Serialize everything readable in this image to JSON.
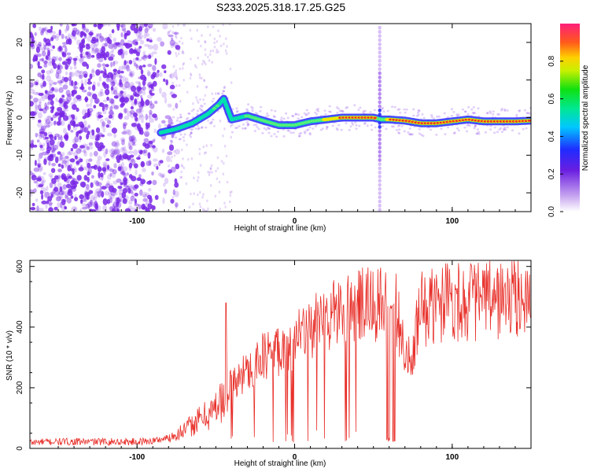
{
  "title": "S233.2025.318.17.25.G25",
  "colors": {
    "snr_line": "#e8302a",
    "ridge_core": "#e8302a",
    "ridge_mid": "#f2e600",
    "ridge_outer": "#00e0b0",
    "ridge_edge": "#2a2aff",
    "noise": "#7a28e6"
  },
  "chart_data": [
    {
      "type": "heatmap",
      "name": "spectrogram",
      "xlabel": "Height of straight line (km)",
      "ylabel": "Frequency (Hz)",
      "xlim": [
        -168,
        150
      ],
      "ylim": [
        -25,
        25
      ],
      "xticks": [
        -100,
        0,
        100
      ],
      "xtick_labels": [
        "-100",
        "0",
        "100"
      ],
      "yticks": [
        -20,
        -10,
        0,
        10,
        20
      ],
      "ytick_labels": [
        "-20",
        "-10",
        "0",
        "10",
        "20"
      ],
      "colorbar": {
        "label": "Normalized spectral amplitude",
        "range": [
          0,
          1
        ],
        "ticks": [
          0.0,
          0.2,
          0.4,
          0.6,
          0.8
        ],
        "tick_labels": [
          "0.0",
          "0.2",
          "0.4",
          "0.6",
          "0.8"
        ]
      },
      "noise_region_x": [
        -168,
        -80
      ],
      "ridge": {
        "x": [
          -85,
          -75,
          -65,
          -55,
          -48,
          -45,
          -40,
          -30,
          -20,
          -10,
          0,
          10,
          20,
          30,
          40,
          50,
          55,
          60,
          70,
          80,
          90,
          100,
          110,
          120,
          130,
          140,
          150
        ],
        "y": [
          -4,
          -3,
          -1.5,
          1,
          3.5,
          5,
          -0.5,
          0.5,
          -0.8,
          -2,
          -2,
          -1,
          -0.5,
          0,
          0,
          0,
          -0.5,
          -0.5,
          -0.8,
          -1.5,
          -1.5,
          -1,
          -0.5,
          -1,
          -1,
          -1,
          -0.8
        ],
        "amplitude": [
          0.25,
          0.3,
          0.35,
          0.4,
          0.45,
          0.35,
          0.35,
          0.45,
          0.5,
          0.55,
          0.6,
          0.7,
          0.8,
          0.9,
          0.95,
          1.0,
          0.5,
          0.95,
          1.0,
          0.95,
          0.9,
          0.9,
          0.95,
          0.95,
          0.95,
          0.95,
          0.9
        ]
      },
      "vertical_artifact_x": 54
    },
    {
      "type": "line",
      "name": "snr",
      "xlabel": "Height of straight line (km)",
      "ylabel": "SNR (10 * v/v)",
      "xlim": [
        -168,
        150
      ],
      "ylim": [
        0,
        620
      ],
      "xticks": [
        -100,
        0,
        100
      ],
      "xtick_labels": [
        "-100",
        "0",
        "100"
      ],
      "yticks": [
        0,
        200,
        400,
        600
      ],
      "ytick_labels": [
        "0",
        "200",
        "400",
        "600"
      ],
      "series": [
        {
          "name": "SNR",
          "x": [
            -168,
            -150,
            -130,
            -110,
            -100,
            -90,
            -80,
            -70,
            -60,
            -50,
            -45,
            -40,
            -35,
            -30,
            -20,
            -10,
            0,
            10,
            20,
            30,
            40,
            50,
            55,
            58,
            60,
            62,
            65,
            70,
            75,
            78,
            80,
            90,
            100,
            110,
            120,
            130,
            140,
            150
          ],
          "y": [
            20,
            22,
            22,
            22,
            22,
            25,
            35,
            60,
            95,
            130,
            170,
            200,
            230,
            260,
            300,
            330,
            350,
            390,
            430,
            455,
            465,
            470,
            470,
            475,
            25,
            470,
            460,
            300,
            280,
            420,
            460,
            470,
            490,
            485,
            490,
            490,
            495,
            500
          ]
        }
      ]
    }
  ]
}
